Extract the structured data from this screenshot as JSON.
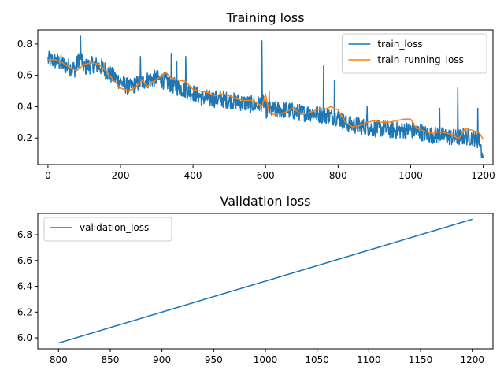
{
  "chart_data": [
    {
      "type": "line",
      "title": "Training loss",
      "xlabel": "",
      "ylabel": "",
      "xlim": [
        -28,
        1227
      ],
      "ylim": [
        0.03,
        0.89
      ],
      "xticks": [
        0,
        200,
        400,
        600,
        800,
        1000,
        1200
      ],
      "yticks": [
        0.2,
        0.4,
        0.6,
        0.8
      ],
      "legend_position": "top-right",
      "series": [
        {
          "name": "train_loss",
          "color": "#1f77b4",
          "style": "noisy",
          "x": [
            0,
            25,
            50,
            75,
            90,
            100,
            125,
            150,
            175,
            200,
            225,
            250,
            275,
            300,
            325,
            350,
            375,
            400,
            425,
            450,
            475,
            500,
            525,
            550,
            575,
            595,
            600,
            625,
            650,
            675,
            700,
            725,
            750,
            775,
            800,
            825,
            850,
            875,
            900,
            925,
            950,
            975,
            1000,
            1025,
            1050,
            1075,
            1100,
            1125,
            1150,
            1175,
            1190,
            1200
          ],
          "values": [
            0.7,
            0.69,
            0.66,
            0.64,
            0.72,
            0.65,
            0.67,
            0.65,
            0.6,
            0.56,
            0.52,
            0.55,
            0.57,
            0.58,
            0.56,
            0.53,
            0.51,
            0.49,
            0.46,
            0.45,
            0.45,
            0.44,
            0.43,
            0.42,
            0.41,
            0.43,
            0.38,
            0.38,
            0.38,
            0.37,
            0.36,
            0.36,
            0.35,
            0.34,
            0.33,
            0.29,
            0.28,
            0.27,
            0.26,
            0.26,
            0.25,
            0.25,
            0.25,
            0.24,
            0.22,
            0.22,
            0.21,
            0.2,
            0.21,
            0.2,
            0.18,
            0.07
          ],
          "noise": 0.055,
          "spikes": [
            [
              90,
              0.85
            ],
            [
              80,
              0.72
            ],
            [
              255,
              0.72
            ],
            [
              355,
              0.69
            ],
            [
              380,
              0.72
            ],
            [
              590,
              0.82
            ],
            [
              610,
              0.5
            ],
            [
              760,
              0.66
            ],
            [
              790,
              0.57
            ],
            [
              1080,
              0.39
            ],
            [
              1130,
              0.52
            ],
            [
              1185,
              0.39
            ],
            [
              880,
              0.4
            ],
            [
              340,
              0.74
            ]
          ]
        },
        {
          "name": "train_running_loss",
          "color": "#ff7f0e",
          "style": "smooth",
          "x": [
            0,
            20,
            40,
            60,
            80,
            100,
            120,
            140,
            160,
            180,
            200,
            220,
            240,
            260,
            275,
            290,
            310,
            325,
            340,
            360,
            380,
            400,
            420,
            440,
            460,
            480,
            500,
            520,
            540,
            560,
            580,
            590,
            600,
            610,
            625,
            650,
            675,
            700,
            720,
            740,
            760,
            780,
            800,
            820,
            840,
            860,
            880,
            900,
            920,
            940,
            960,
            980,
            1000,
            1010,
            1020,
            1040,
            1060,
            1080,
            1100,
            1120,
            1130,
            1140,
            1150,
            1170,
            1190,
            1200
          ],
          "values": [
            0.7,
            0.7,
            0.68,
            0.65,
            0.63,
            0.67,
            0.68,
            0.67,
            0.63,
            0.57,
            0.52,
            0.5,
            0.52,
            0.57,
            0.53,
            0.56,
            0.59,
            0.62,
            0.58,
            0.57,
            0.56,
            0.51,
            0.5,
            0.49,
            0.47,
            0.48,
            0.47,
            0.45,
            0.44,
            0.44,
            0.42,
            0.4,
            0.48,
            0.36,
            0.35,
            0.36,
            0.39,
            0.35,
            0.36,
            0.38,
            0.38,
            0.4,
            0.38,
            0.3,
            0.27,
            0.28,
            0.3,
            0.31,
            0.3,
            0.3,
            0.31,
            0.32,
            0.32,
            0.28,
            0.26,
            0.24,
            0.23,
            0.24,
            0.23,
            0.22,
            0.19,
            0.22,
            0.26,
            0.25,
            0.23,
            0.19
          ]
        }
      ]
    },
    {
      "type": "line",
      "title": "Validation loss",
      "xlabel": "",
      "ylabel": "",
      "xlim": [
        780,
        1220
      ],
      "ylim": [
        5.915,
        6.965
      ],
      "xticks": [
        800,
        850,
        900,
        950,
        1000,
        1050,
        1100,
        1150,
        1200
      ],
      "yticks": [
        6.0,
        6.2,
        6.4,
        6.6,
        6.8
      ],
      "legend_position": "top-left",
      "series": [
        {
          "name": "validation_loss",
          "color": "#1f77b4",
          "style": "smooth",
          "x": [
            800,
            1200
          ],
          "values": [
            5.96,
            6.92
          ]
        }
      ]
    }
  ]
}
